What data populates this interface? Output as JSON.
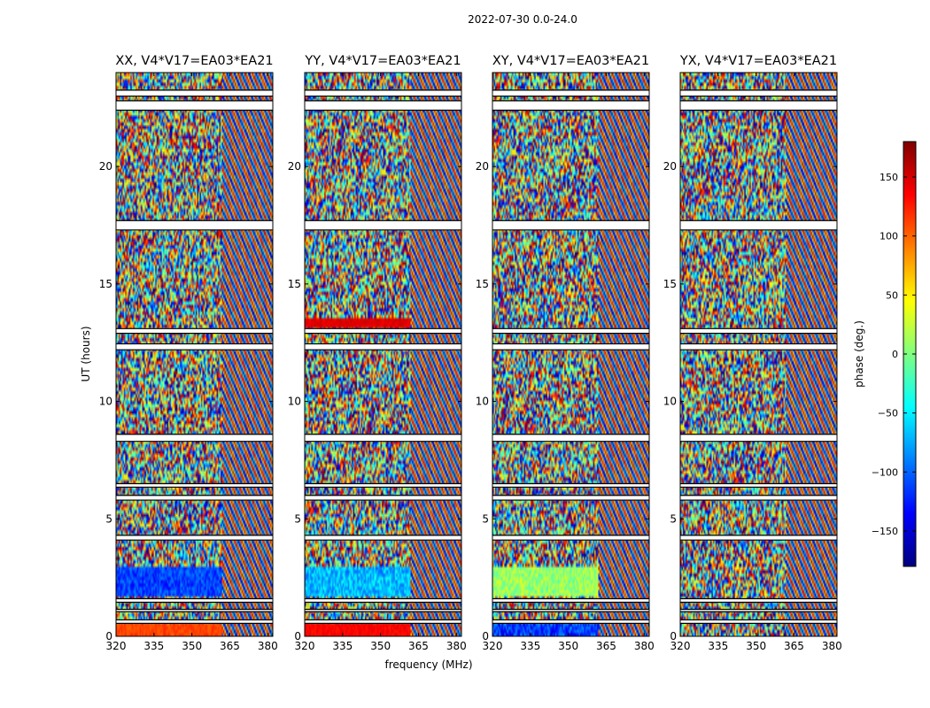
{
  "figure_title": "2022-07-30 0.0-24.0",
  "xlabel": "frequency (MHz)",
  "ylabel": "UT (hours)",
  "colorbar": {
    "label": "phase (deg.)",
    "range": [
      -180,
      180
    ],
    "ticks": [
      150,
      100,
      50,
      0,
      -50,
      -100,
      -150
    ],
    "tick_labels": [
      "150",
      "100",
      "50",
      "0",
      "−50",
      "−100",
      "−150"
    ],
    "colormap": "jet",
    "colormap_stops": [
      "#00007f",
      "#0000ff",
      "#0080ff",
      "#00ffff",
      "#80ff80",
      "#ffff00",
      "#ff8000",
      "#ff0000",
      "#7f0000"
    ]
  },
  "chart_data": [
    {
      "type": "heatmap",
      "title": "XX, V4*V17=EA03*EA21",
      "xlim": [
        320,
        382
      ],
      "ylim": [
        0,
        24
      ],
      "xticks": [
        "320",
        "335",
        "350",
        "365",
        "380"
      ],
      "yticks": [
        "0",
        "5",
        "10",
        "15",
        "20"
      ],
      "value": "phase (deg.)",
      "flagged_time_bands_hours": [
        [
          0.55,
          0.7
        ],
        [
          1.05,
          1.15
        ],
        [
          1.45,
          1.6
        ],
        [
          4.1,
          4.3
        ],
        [
          5.8,
          6.0
        ],
        [
          6.35,
          6.5
        ],
        [
          8.3,
          8.6
        ],
        [
          12.2,
          12.45
        ],
        [
          12.9,
          13.1
        ],
        [
          17.3,
          17.7
        ],
        [
          22.4,
          22.8
        ],
        [
          23.0,
          23.25
        ]
      ],
      "notes": "Phase vs frequency and time; smooth phase (about -150 to -100 deg) at 320-362 MHz around 1.8-2.9 h and about +120 deg near 0.3 h; fringe patterns above 362 MHz."
    },
    {
      "type": "heatmap",
      "title": "YY, V4*V17=EA03*EA21",
      "xlim": [
        320,
        382
      ],
      "ylim": [
        0,
        24
      ],
      "xticks": [
        "320",
        "335",
        "350",
        "365",
        "380"
      ],
      "yticks": [
        "0",
        "5",
        "10",
        "15",
        "20"
      ],
      "value": "phase (deg.)",
      "flagged_time_bands_hours": [
        [
          0.55,
          0.7
        ],
        [
          1.05,
          1.15
        ],
        [
          1.45,
          1.6
        ],
        [
          4.1,
          4.3
        ],
        [
          5.8,
          6.0
        ],
        [
          6.35,
          6.5
        ],
        [
          8.3,
          8.6
        ],
        [
          12.2,
          12.45
        ],
        [
          12.9,
          13.1
        ],
        [
          17.3,
          17.7
        ],
        [
          22.4,
          22.8
        ],
        [
          23.0,
          23.25
        ]
      ],
      "notes": "Similar to XX; smooth phase near 140 deg below 1 h and near -90 deg around 2 h; orange/red bands near 5 h and 13-14 h."
    },
    {
      "type": "heatmap",
      "title": "XY, V4*V17=EA03*EA21",
      "xlim": [
        320,
        382
      ],
      "ylim": [
        0,
        24
      ],
      "xticks": [
        "320",
        "335",
        "350",
        "365",
        "380"
      ],
      "yticks": [
        "0",
        "5",
        "10",
        "15",
        "20"
      ],
      "value": "phase (deg.)",
      "flagged_time_bands_hours": [
        [
          0.55,
          0.7
        ],
        [
          1.05,
          1.15
        ],
        [
          1.45,
          1.6
        ],
        [
          4.1,
          4.3
        ],
        [
          5.8,
          6.0
        ],
        [
          6.35,
          6.5
        ],
        [
          8.3,
          8.6
        ],
        [
          12.2,
          12.45
        ],
        [
          12.9,
          13.1
        ],
        [
          17.3,
          17.7
        ],
        [
          22.4,
          22.8
        ],
        [
          23.0,
          23.25
        ]
      ],
      "notes": "Mostly noise-like phase; greenish around 2-3 h."
    },
    {
      "type": "heatmap",
      "title": "YX, V4*V17=EA03*EA21",
      "xlim": [
        320,
        382
      ],
      "ylim": [
        0,
        24
      ],
      "xticks": [
        "320",
        "335",
        "350",
        "365",
        "380"
      ],
      "yticks": [
        "0",
        "5",
        "10",
        "15",
        "20"
      ],
      "value": "phase (deg.)",
      "flagged_time_bands_hours": [
        [
          0.55,
          0.7
        ],
        [
          1.05,
          1.15
        ],
        [
          1.45,
          1.6
        ],
        [
          4.1,
          4.3
        ],
        [
          5.8,
          6.0
        ],
        [
          6.35,
          6.5
        ],
        [
          8.3,
          8.6
        ],
        [
          12.2,
          12.45
        ],
        [
          12.9,
          13.1
        ],
        [
          17.3,
          17.7
        ],
        [
          22.4,
          22.8
        ],
        [
          23.0,
          23.25
        ]
      ],
      "notes": "Mostly noise-like phase; faint fringes above 362 MHz."
    }
  ]
}
